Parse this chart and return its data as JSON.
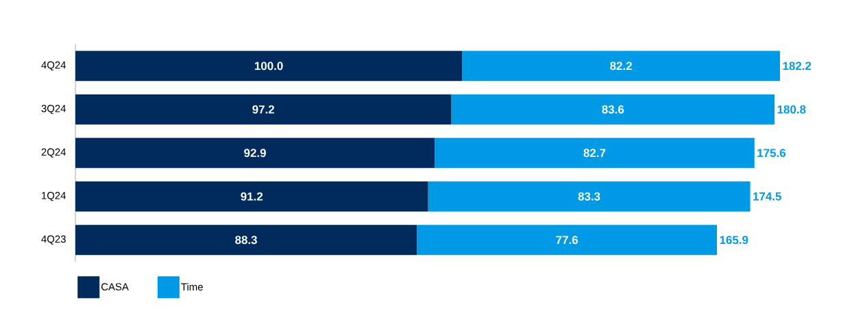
{
  "chart_data": {
    "type": "bar",
    "orientation": "horizontal",
    "stacked": true,
    "categories": [
      "4Q24",
      "3Q24",
      "2Q24",
      "1Q24",
      "4Q23"
    ],
    "series": [
      {
        "name": "CASA",
        "color": "#002b5c",
        "values": [
          100.0,
          97.2,
          92.9,
          91.2,
          88.3
        ],
        "value_labels": [
          "100.0",
          "97.2",
          "92.9",
          "91.2",
          "88.3"
        ]
      },
      {
        "name": "Time",
        "color": "#0099e6",
        "values": [
          82.2,
          83.6,
          82.7,
          83.3,
          77.6
        ],
        "value_labels": [
          "82.2",
          "83.6",
          "82.7",
          "83.3",
          "77.6"
        ]
      }
    ],
    "totals": [
      "182.2",
      "180.8",
      "175.6",
      "174.5",
      "165.9"
    ],
    "legend": "bottom left"
  }
}
